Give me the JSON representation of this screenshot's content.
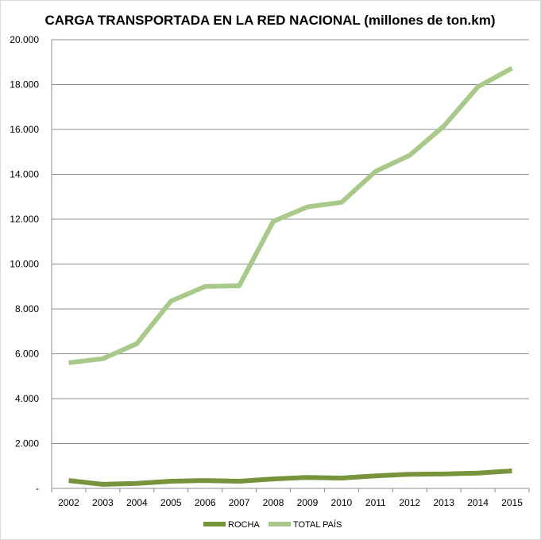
{
  "chart_data": {
    "type": "line",
    "title": "CARGA TRANSPORTADA EN LA RED NACIONAL (millones de ton.km)",
    "xlabel": "",
    "ylabel": "",
    "categories": [
      "2002",
      "2003",
      "2004",
      "2005",
      "2006",
      "2007",
      "2008",
      "2009",
      "2010",
      "2011",
      "2012",
      "2013",
      "2014",
      "2015"
    ],
    "ylim": [
      0,
      20000
    ],
    "y_ticks": [
      0,
      2000,
      4000,
      6000,
      8000,
      10000,
      12000,
      14000,
      16000,
      18000,
      20000
    ],
    "y_tick_labels": [
      "-",
      "2.000",
      "4.000",
      "6.000",
      "8.000",
      "10.000",
      "12.000",
      "14.000",
      "16.000",
      "18.000",
      "20.000"
    ],
    "grid": true,
    "legend_position": "bottom",
    "series": [
      {
        "name": "ROCHA",
        "color": "#77933c",
        "values": [
          350,
          180,
          220,
          320,
          350,
          320,
          420,
          490,
          460,
          560,
          630,
          640,
          680,
          780
        ]
      },
      {
        "name": "TOTAL PAÍS",
        "color": "#a9c98a",
        "values": [
          5600,
          5780,
          6450,
          8350,
          9000,
          9030,
          11900,
          12550,
          12750,
          14130,
          14850,
          16150,
          17900,
          18730
        ]
      }
    ]
  }
}
